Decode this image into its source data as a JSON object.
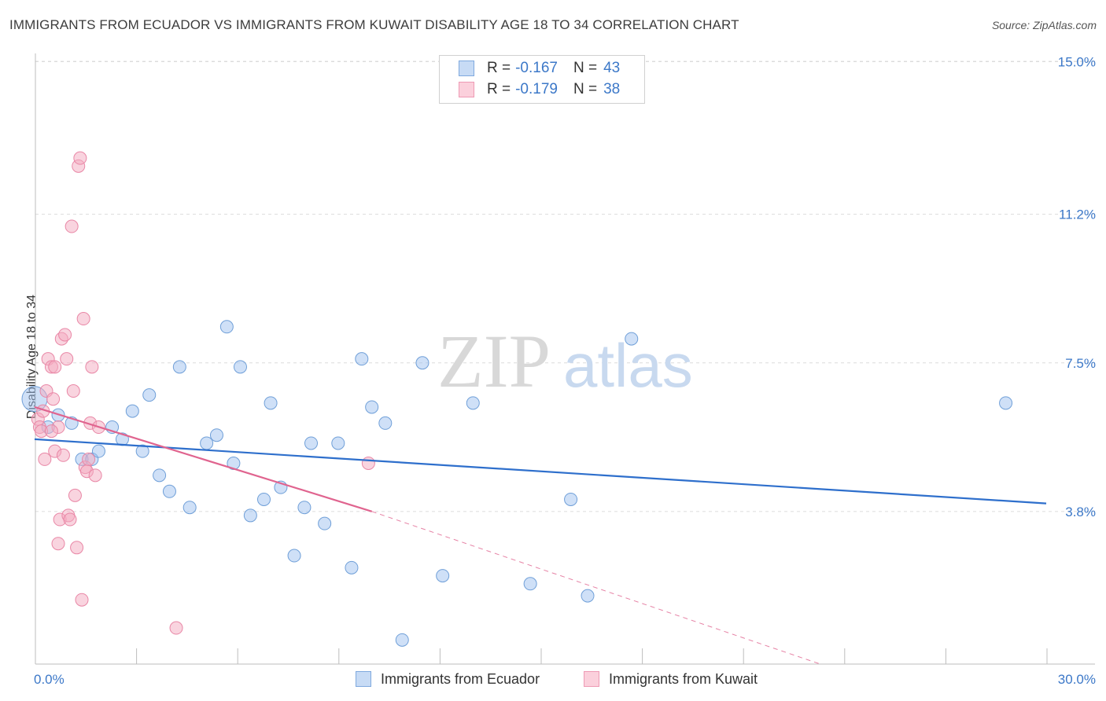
{
  "chart_data": {
    "type": "scatter",
    "title": "IMMIGRANTS FROM ECUADOR VS IMMIGRANTS FROM KUWAIT DISABILITY AGE 18 TO 34 CORRELATION CHART",
    "source": "Source: ZipAtlas.com",
    "xlabel": "",
    "ylabel": "Disability Age 18 to 34",
    "xlim": [
      0,
      30
    ],
    "ylim": [
      0,
      15.5
    ],
    "x_tick_labels": [
      "0.0%",
      "30.0%"
    ],
    "y_ticks": [
      3.8,
      7.5,
      11.2,
      15.0
    ],
    "y_tick_labels": [
      "3.8%",
      "7.5%",
      "11.2%",
      "15.0%"
    ],
    "grid": true,
    "watermark": "ZIPatlas",
    "legend": {
      "entries": [
        {
          "r_label": "R =",
          "r_value": "-0.167",
          "n_label": "N =",
          "n_value": "43",
          "color": "#9fc2ef"
        },
        {
          "r_label": "R =",
          "r_value": "-0.179",
          "n_label": "N =",
          "n_value": "38",
          "color": "#f4a9c0"
        }
      ]
    },
    "series": [
      {
        "name": "Immigrants from Ecuador",
        "color": "#9fc2ef",
        "stroke": "#6f9fd8",
        "line_color": "#2e6fcc",
        "trend": {
          "x": [
            0,
            30
          ],
          "y": [
            5.6,
            4.0
          ]
        },
        "points": [
          [
            0.0,
            6.6
          ],
          [
            0.4,
            5.9
          ],
          [
            0.7,
            6.2
          ],
          [
            1.1,
            6.0
          ],
          [
            1.4,
            5.1
          ],
          [
            1.7,
            5.1
          ],
          [
            1.9,
            5.3
          ],
          [
            2.3,
            5.9
          ],
          [
            2.6,
            5.6
          ],
          [
            2.9,
            6.3
          ],
          [
            3.2,
            5.3
          ],
          [
            3.4,
            6.7
          ],
          [
            3.7,
            4.7
          ],
          [
            4.0,
            4.3
          ],
          [
            4.3,
            7.4
          ],
          [
            4.6,
            3.9
          ],
          [
            5.1,
            5.5
          ],
          [
            5.4,
            5.7
          ],
          [
            5.7,
            8.4
          ],
          [
            5.9,
            5.0
          ],
          [
            6.1,
            7.4
          ],
          [
            6.4,
            3.7
          ],
          [
            6.8,
            4.1
          ],
          [
            7.0,
            6.5
          ],
          [
            7.3,
            4.4
          ],
          [
            7.7,
            2.7
          ],
          [
            8.0,
            3.9
          ],
          [
            8.2,
            5.5
          ],
          [
            8.6,
            3.5
          ],
          [
            9.0,
            5.5
          ],
          [
            9.4,
            2.4
          ],
          [
            9.7,
            7.6
          ],
          [
            10.0,
            6.4
          ],
          [
            10.4,
            6.0
          ],
          [
            10.9,
            0.6
          ],
          [
            11.5,
            7.5
          ],
          [
            12.1,
            2.2
          ],
          [
            13.0,
            6.5
          ],
          [
            14.7,
            2.0
          ],
          [
            15.9,
            4.1
          ],
          [
            16.4,
            1.7
          ],
          [
            17.7,
            8.1
          ],
          [
            28.8,
            6.5
          ]
        ]
      },
      {
        "name": "Immigrants from Kuwait",
        "color": "#f4a9c0",
        "stroke": "#e987a6",
        "line_color": "#e0648f",
        "trend": {
          "x": [
            0,
            10
          ],
          "y": [
            6.4,
            3.8
          ]
        },
        "trend_dashed": {
          "x": [
            10,
            30
          ],
          "y": [
            3.8,
            -1.4
          ]
        },
        "points": [
          [
            0.1,
            6.1
          ],
          [
            0.15,
            5.9
          ],
          [
            0.2,
            5.8
          ],
          [
            0.25,
            6.3
          ],
          [
            0.3,
            5.1
          ],
          [
            0.35,
            6.8
          ],
          [
            0.4,
            7.6
          ],
          [
            0.5,
            7.4
          ],
          [
            0.6,
            7.4
          ],
          [
            0.7,
            5.9
          ],
          [
            0.5,
            5.8
          ],
          [
            0.6,
            5.3
          ],
          [
            0.55,
            6.6
          ],
          [
            0.7,
            3.0
          ],
          [
            0.75,
            3.6
          ],
          [
            0.8,
            8.1
          ],
          [
            0.85,
            5.2
          ],
          [
            0.9,
            8.2
          ],
          [
            0.95,
            7.6
          ],
          [
            1.0,
            3.7
          ],
          [
            1.05,
            3.6
          ],
          [
            1.1,
            10.9
          ],
          [
            1.15,
            6.8
          ],
          [
            1.2,
            4.2
          ],
          [
            1.25,
            2.9
          ],
          [
            1.3,
            12.4
          ],
          [
            1.35,
            12.6
          ],
          [
            1.4,
            1.6
          ],
          [
            1.45,
            8.6
          ],
          [
            1.5,
            4.9
          ],
          [
            1.55,
            4.8
          ],
          [
            1.6,
            5.1
          ],
          [
            1.65,
            6.0
          ],
          [
            1.7,
            7.4
          ],
          [
            1.8,
            4.7
          ],
          [
            1.9,
            5.9
          ],
          [
            4.2,
            0.9
          ],
          [
            9.9,
            5.0
          ]
        ]
      }
    ]
  }
}
